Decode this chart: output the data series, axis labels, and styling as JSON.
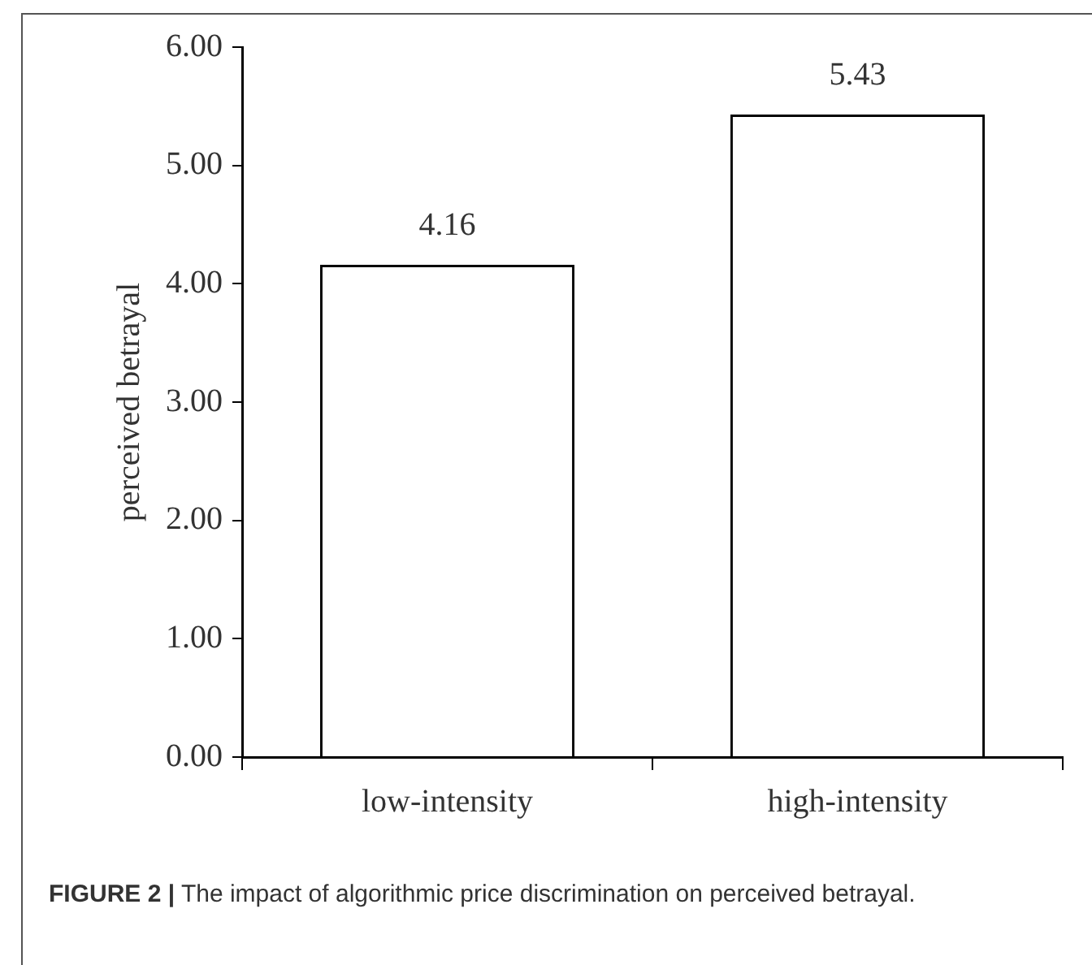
{
  "chart_data": {
    "type": "bar",
    "categories": [
      "low-intensity",
      "high-intensity"
    ],
    "values": [
      4.16,
      5.43
    ],
    "color": "#ffffff",
    "ylabel": "perceived betrayal",
    "ylim": [
      0,
      6
    ],
    "yticks": [
      {
        "value": 0,
        "label": "0.00"
      },
      {
        "value": 1,
        "label": "1.00"
      },
      {
        "value": 2,
        "label": "2.00"
      },
      {
        "value": 3,
        "label": "3.00"
      },
      {
        "value": 4,
        "label": "4.00"
      },
      {
        "value": 5,
        "label": "5.00"
      },
      {
        "value": 6,
        "label": "6.00"
      }
    ],
    "data_labels": true,
    "grid": false,
    "legend": false,
    "annotations": [
      "FIGURE 2 | The impact of algorithmic price discrimination on perceived betrayal."
    ]
  }
}
